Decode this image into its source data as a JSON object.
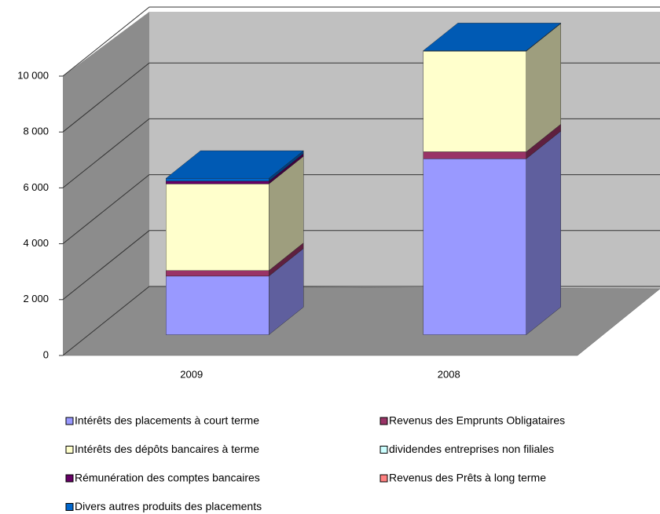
{
  "chart_data": {
    "type": "bar3d-stacked",
    "categories": [
      "2009",
      "2008"
    ],
    "series": [
      {
        "name": "Intérêts des placements à court terme",
        "color": "#9999ff",
        "values": [
          2100,
          6300
        ]
      },
      {
        "name": "Revenus des Emprunts Obligataires",
        "color": "#993366",
        "values": [
          200,
          250
        ]
      },
      {
        "name": "Intérêts des dépôts bancaires à terme",
        "color": "#ffffcc",
        "values": [
          3100,
          3600
        ]
      },
      {
        "name": "dividendes entreprises non filiales",
        "color": "#ccffff",
        "values": [
          0,
          0
        ]
      },
      {
        "name": "Rémunération des comptes bancaires",
        "color": "#660066",
        "values": [
          100,
          0
        ]
      },
      {
        "name": "Revenus des Prêts à long terme",
        "color": "#ff8080",
        "values": [
          0,
          0
        ]
      },
      {
        "name": "Divers autres produits des placements",
        "color": "#0066cc",
        "values": [
          100,
          20
        ]
      }
    ],
    "ylim": [
      0,
      10000
    ],
    "yticks": [
      0,
      {
        "value": 2000,
        "label": "2 000"
      },
      {
        "value": 4000,
        "label": "4 000"
      },
      {
        "value": 6000,
        "label": "6 000"
      },
      {
        "value": 8000,
        "label": "8 000"
      },
      {
        "value": 10000,
        "label": "10 000"
      }
    ],
    "grid": true
  }
}
